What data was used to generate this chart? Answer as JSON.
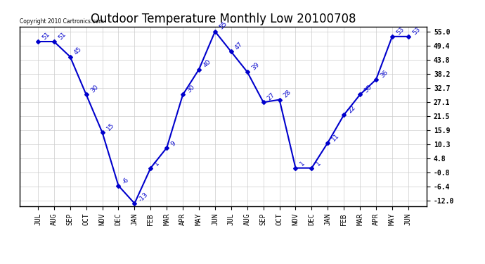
{
  "title": "Outdoor Temperature Monthly Low 20100708",
  "copyright_text": "Copyright 2010 Cartronics.com",
  "x_labels": [
    "JUL",
    "AUG",
    "SEP",
    "OCT",
    "NOV",
    "DEC",
    "JAN",
    "FEB",
    "MAR",
    "APR",
    "MAY",
    "JUN",
    "JUL",
    "AUG",
    "SEP",
    "OCT",
    "NOV",
    "DEC",
    "JAN",
    "FEB",
    "MAR",
    "APR",
    "MAY",
    "JUN"
  ],
  "y_values": [
    51,
    51,
    45,
    30,
    15,
    -6,
    -13,
    1,
    9,
    30,
    40,
    55,
    47,
    39,
    27,
    28,
    1,
    1,
    11,
    22,
    30,
    36,
    53,
    53
  ],
  "y_ticks": [
    55.0,
    49.4,
    43.8,
    38.2,
    32.7,
    27.1,
    21.5,
    15.9,
    10.3,
    4.8,
    -0.8,
    -6.4,
    -12.0
  ],
  "ymin": -14.0,
  "ymax": 57.0,
  "line_color": "#0000cc",
  "marker": "D",
  "marker_size": 3,
  "background_color": "#ffffff",
  "grid_color": "#cccccc",
  "title_fontsize": 12,
  "tick_fontsize": 7,
  "annot_fontsize": 6.5
}
